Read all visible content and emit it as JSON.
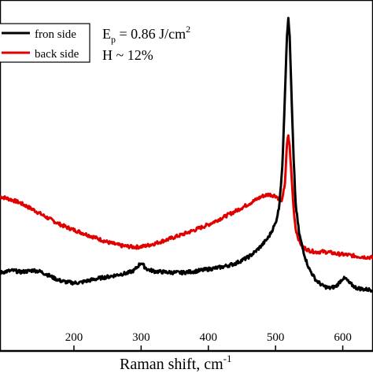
{
  "chart_data": {
    "type": "line",
    "xlabel": "Raman shift, cm",
    "xlabel_sup": "-1",
    "xlim": [
      90,
      645
    ],
    "ylim": [
      0,
      100
    ],
    "x_ticks": [
      200,
      300,
      400,
      500,
      600
    ],
    "grid": false,
    "legend": {
      "position": "top-left",
      "entries": [
        "fron side",
        "back side"
      ]
    },
    "annotations": {
      "ep_main": "E",
      "ep_sub": "p",
      "ep_value": " = 0.86 J/cm",
      "ep_sup": "2",
      "humidity": "H ~ 12%"
    },
    "series": [
      {
        "name": "fron side",
        "color": "#000000",
        "points": [
          [
            90,
            22.3
          ],
          [
            100,
            22.7
          ],
          [
            110,
            22.9
          ],
          [
            120,
            22.5
          ],
          [
            130,
            22.7
          ],
          [
            140,
            23.0
          ],
          [
            150,
            22.6
          ],
          [
            160,
            21.8
          ],
          [
            170,
            20.8
          ],
          [
            180,
            20.0
          ],
          [
            190,
            19.6
          ],
          [
            200,
            19.4
          ],
          [
            210,
            19.5
          ],
          [
            220,
            20.0
          ],
          [
            230,
            20.4
          ],
          [
            240,
            20.8
          ],
          [
            250,
            21.1
          ],
          [
            260,
            21.5
          ],
          [
            270,
            21.9
          ],
          [
            280,
            22.2
          ],
          [
            290,
            23.0
          ],
          [
            300,
            25.2
          ],
          [
            305,
            24.0
          ],
          [
            310,
            23.2
          ],
          [
            320,
            22.7
          ],
          [
            340,
            22.4
          ],
          [
            360,
            22.3
          ],
          [
            380,
            22.7
          ],
          [
            400,
            23.3
          ],
          [
            420,
            23.9
          ],
          [
            440,
            24.9
          ],
          [
            460,
            26.8
          ],
          [
            470,
            28.3
          ],
          [
            480,
            30.2
          ],
          [
            490,
            32.5
          ],
          [
            500,
            36.4
          ],
          [
            505,
            40.6
          ],
          [
            510,
            52.0
          ],
          [
            514,
            73.5
          ],
          [
            517,
            90.2
          ],
          [
            519,
            94.5
          ],
          [
            521,
            89.8
          ],
          [
            524,
            71.0
          ],
          [
            527,
            54.0
          ],
          [
            530,
            41.7
          ],
          [
            535,
            33.6
          ],
          [
            540,
            29.5
          ],
          [
            545,
            26.1
          ],
          [
            550,
            23.4
          ],
          [
            560,
            20.2
          ],
          [
            570,
            18.6
          ],
          [
            580,
            17.9
          ],
          [
            590,
            18.4
          ],
          [
            600,
            20.7
          ],
          [
            605,
            20.5
          ],
          [
            610,
            19.3
          ],
          [
            620,
            18.0
          ],
          [
            630,
            17.6
          ],
          [
            645,
            17.4
          ]
        ]
      },
      {
        "name": "back side",
        "color": "#e00000",
        "points": [
          [
            90,
            44.0
          ],
          [
            100,
            43.5
          ],
          [
            110,
            42.9
          ],
          [
            120,
            42.2
          ],
          [
            130,
            41.2
          ],
          [
            140,
            40.2
          ],
          [
            150,
            39.1
          ],
          [
            160,
            38.0
          ],
          [
            170,
            37.0
          ],
          [
            180,
            36.0
          ],
          [
            190,
            35.2
          ],
          [
            200,
            34.5
          ],
          [
            210,
            33.8
          ],
          [
            220,
            33.1
          ],
          [
            230,
            32.4
          ],
          [
            240,
            31.7
          ],
          [
            250,
            31.0
          ],
          [
            260,
            30.5
          ],
          [
            270,
            30.0
          ],
          [
            280,
            29.8
          ],
          [
            290,
            29.6
          ],
          [
            300,
            29.7
          ],
          [
            310,
            30.1
          ],
          [
            320,
            30.6
          ],
          [
            340,
            31.8
          ],
          [
            360,
            33.1
          ],
          [
            380,
            34.5
          ],
          [
            400,
            36.0
          ],
          [
            420,
            37.9
          ],
          [
            440,
            39.8
          ],
          [
            460,
            41.9
          ],
          [
            470,
            43.0
          ],
          [
            480,
            44.1
          ],
          [
            490,
            44.6
          ],
          [
            500,
            44.2
          ],
          [
            505,
            43.4
          ],
          [
            510,
            43.0
          ],
          [
            514,
            48.0
          ],
          [
            517,
            58.7
          ],
          [
            519,
            61.5
          ],
          [
            521,
            58.2
          ],
          [
            524,
            49.0
          ],
          [
            527,
            40.3
          ],
          [
            530,
            34.8
          ],
          [
            535,
            31.4
          ],
          [
            540,
            29.7
          ],
          [
            550,
            28.6
          ],
          [
            560,
            28.2
          ],
          [
            570,
            28.3
          ],
          [
            580,
            28.1
          ],
          [
            590,
            27.7
          ],
          [
            600,
            27.5
          ],
          [
            610,
            27.3
          ],
          [
            620,
            27.0
          ],
          [
            630,
            26.8
          ],
          [
            645,
            26.6
          ]
        ]
      }
    ]
  }
}
